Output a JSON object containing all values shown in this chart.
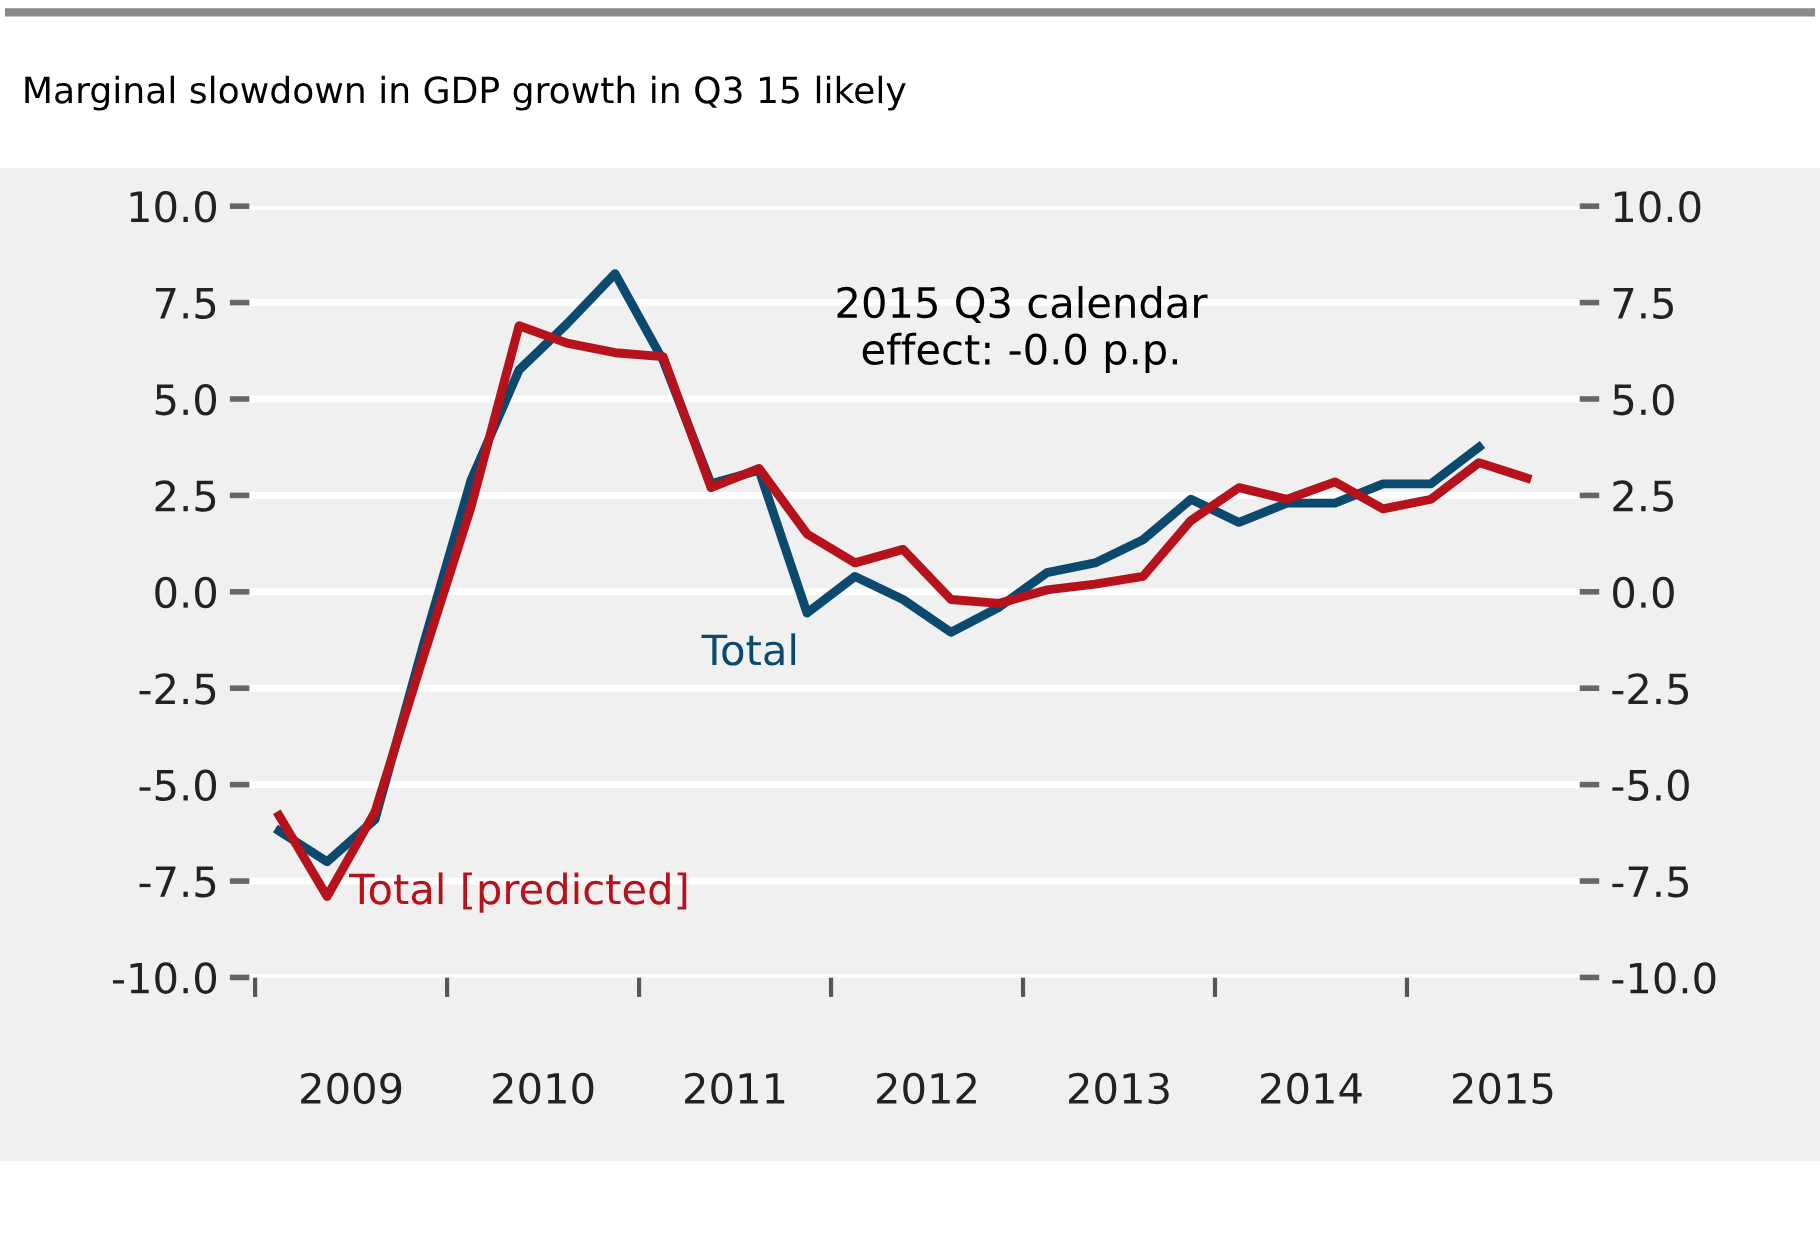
{
  "chart_data": {
    "type": "line",
    "title": "Marginal slowdown in GDP growth in Q3 15 likely",
    "x": [
      2009.125,
      2009.375,
      2009.625,
      2009.875,
      2010.125,
      2010.375,
      2010.625,
      2010.875,
      2011.125,
      2011.375,
      2011.625,
      2011.875,
      2012.125,
      2012.375,
      2012.625,
      2012.875,
      2013.125,
      2013.375,
      2013.625,
      2013.875,
      2014.125,
      2014.375,
      2014.625,
      2014.875,
      2015.125,
      2015.375,
      2015.625
    ],
    "series": [
      {
        "name": "Total",
        "color": "#0b4a6e",
        "values": [
          -6.2,
          -7.0,
          -5.9,
          -1.4,
          2.9,
          5.75,
          6.95,
          8.25,
          6.0,
          2.8,
          3.15,
          -0.55,
          0.4,
          -0.2,
          -1.05,
          -0.4,
          0.5,
          0.75,
          1.35,
          2.4,
          1.8,
          2.3,
          2.3,
          2.8,
          2.8,
          3.75,
          null
        ]
      },
      {
        "name": "Total [predicted]",
        "color": "#b5121b",
        "values": [
          -5.8,
          -7.9,
          -5.7,
          -1.7,
          2.2,
          6.9,
          6.45,
          6.2,
          6.1,
          2.7,
          3.2,
          1.5,
          0.75,
          1.1,
          -0.2,
          -0.3,
          0.05,
          0.2,
          0.4,
          1.85,
          2.7,
          2.4,
          2.85,
          2.15,
          2.4,
          3.35,
          2.95
        ]
      }
    ],
    "annotations": [
      "2015 Q3 calendar\neffect: -0.0 p.p."
    ],
    "xlim": [
      2008.97,
      2015.9
    ],
    "xticks": [
      {
        "value": 2009,
        "label": null
      },
      {
        "value": 2010,
        "label": null
      },
      {
        "value": 2011,
        "label": null
      },
      {
        "value": 2012,
        "label": null
      },
      {
        "value": 2013,
        "label": null
      },
      {
        "value": 2014,
        "label": null
      },
      {
        "value": 2015,
        "label": null
      },
      {
        "value": 2009.5,
        "label": "2009"
      },
      {
        "value": 2010.5,
        "label": "2010"
      },
      {
        "value": 2011.5,
        "label": "2011"
      },
      {
        "value": 2012.5,
        "label": "2012"
      },
      {
        "value": 2013.5,
        "label": "2013"
      },
      {
        "value": 2014.5,
        "label": "2014"
      },
      {
        "value": 2015.5,
        "label": "2015"
      }
    ],
    "ylim": [
      -10,
      10
    ],
    "yticks": [
      {
        "value": 10,
        "label": "10.0"
      },
      {
        "value": 7.5,
        "label": "7.5"
      },
      {
        "value": 5,
        "label": "5.0"
      },
      {
        "value": 2.5,
        "label": "2.5"
      },
      {
        "value": 0,
        "label": "0.0"
      },
      {
        "value": -2.5,
        "label": "-2.5"
      },
      {
        "value": -5,
        "label": "-5.0"
      },
      {
        "value": -7.5,
        "label": "-7.5"
      },
      {
        "value": -10,
        "label": "-10.0"
      }
    ],
    "y2lim": [
      -10,
      10
    ],
    "y2ticks": [
      {
        "value": 10,
        "label": "10.0"
      },
      {
        "value": 7.5,
        "label": "7.5"
      },
      {
        "value": 5,
        "label": "5.0"
      },
      {
        "value": 2.5,
        "label": "2.5"
      },
      {
        "value": 0,
        "label": "0.0"
      },
      {
        "value": -2.5,
        "label": "-2.5"
      },
      {
        "value": -5,
        "label": "-5.0"
      },
      {
        "value": -7.5,
        "label": "-7.5"
      },
      {
        "value": -10,
        "label": "-10.0"
      }
    ],
    "grid": "y",
    "marker": "none",
    "line_style": "solid"
  }
}
